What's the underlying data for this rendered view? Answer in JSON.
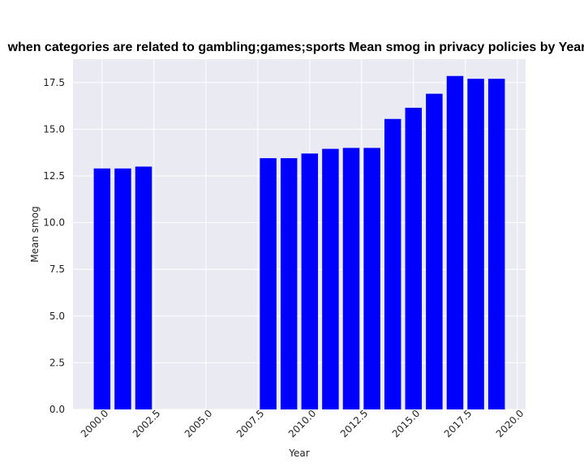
{
  "chart_data": {
    "type": "bar",
    "title": "when categories are related to gambling;games;sports Mean smog in privacy policies by Year",
    "xlabel": "Year",
    "ylabel": "Mean smog",
    "x": [
      2000,
      2001,
      2002,
      2008,
      2009,
      2010,
      2011,
      2012,
      2013,
      2014,
      2015,
      2016,
      2017,
      2018,
      2019
    ],
    "values": [
      12.9,
      12.9,
      13.0,
      13.45,
      13.45,
      13.7,
      13.95,
      14.0,
      14.0,
      15.55,
      16.15,
      16.9,
      17.85,
      17.7,
      17.7
    ],
    "xlim": [
      1998.6,
      2020.4
    ],
    "ylim": [
      0,
      18.75
    ],
    "xticks": [
      2000.0,
      2002.5,
      2005.0,
      2007.5,
      2010.0,
      2012.5,
      2015.0,
      2017.5,
      2020.0
    ],
    "xtick_labels": [
      "2000.0",
      "2002.5",
      "2005.0",
      "2007.5",
      "2010.0",
      "2012.5",
      "2015.0",
      "2017.5",
      "2020.0"
    ],
    "yticks": [
      0,
      2.5,
      5,
      7.5,
      10,
      12.5,
      15,
      17.5
    ],
    "ytick_labels": [
      "0.0",
      "2.5",
      "5.0",
      "7.5",
      "10.0",
      "12.5",
      "15.0",
      "17.5"
    ],
    "bar_width": 0.8,
    "grid": true,
    "colors": {
      "bar": "#0000ff",
      "plot_background": "#eaeaf2",
      "grid": "#ffffff"
    }
  }
}
